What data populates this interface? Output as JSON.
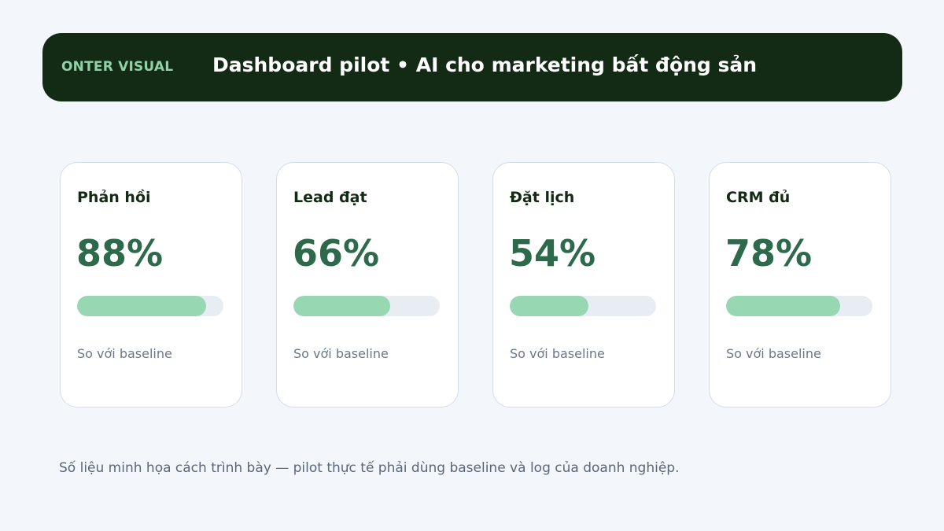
{
  "header": {
    "brand": "ONTER VISUAL",
    "title": "Dashboard pilot • AI cho marketing bất động sản"
  },
  "cards": [
    {
      "label": "Phản hồi",
      "value": "88%",
      "progress": 0.88,
      "note": "So với baseline"
    },
    {
      "label": "Lead đạt",
      "value": "66%",
      "progress": 0.66,
      "note": "So với baseline"
    },
    {
      "label": "Đặt lịch",
      "value": "54%",
      "progress": 0.54,
      "note": "So với baseline"
    },
    {
      "label": "CRM đủ",
      "value": "78%",
      "progress": 0.78,
      "note": "So với baseline"
    }
  ],
  "footnote": "Số liệu minh họa cách trình bày — pilot thực tế phải dùng baseline và log của doanh nghiệp.",
  "colors": {
    "header_bg": "#132a14",
    "brand": "#8fd2a8",
    "value": "#2c6a4b",
    "bar_fill": "#97d8b2",
    "bar_track": "#e8edf4"
  }
}
